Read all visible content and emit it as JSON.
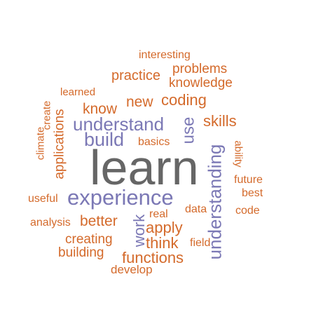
{
  "colors": {
    "background": "#ffffff",
    "large": "#666666",
    "purple": "#7b78b5",
    "orange": "#d46a2b"
  },
  "words": {
    "learn": "learn",
    "experience": "experience",
    "understanding": "understanding",
    "understand": "understand",
    "build": "build",
    "use": "use",
    "work": "work",
    "know": "know",
    "new": "new",
    "coding": "coding",
    "skills": "skills",
    "practice": "practice",
    "problems": "problems",
    "knowledge": "knowledge",
    "interesting": "interesting",
    "learned": "learned",
    "create": "create",
    "applications": "applications",
    "climate": "climate",
    "basics": "basics",
    "ability": "ability",
    "future": "future",
    "best": "best",
    "code": "code",
    "useful": "useful",
    "data": "data",
    "real": "real",
    "better": "better",
    "analysis": "analysis",
    "apply": "apply",
    "creating": "creating",
    "think": "think",
    "field": "field",
    "building": "building",
    "functions": "functions",
    "develop": "develop"
  }
}
